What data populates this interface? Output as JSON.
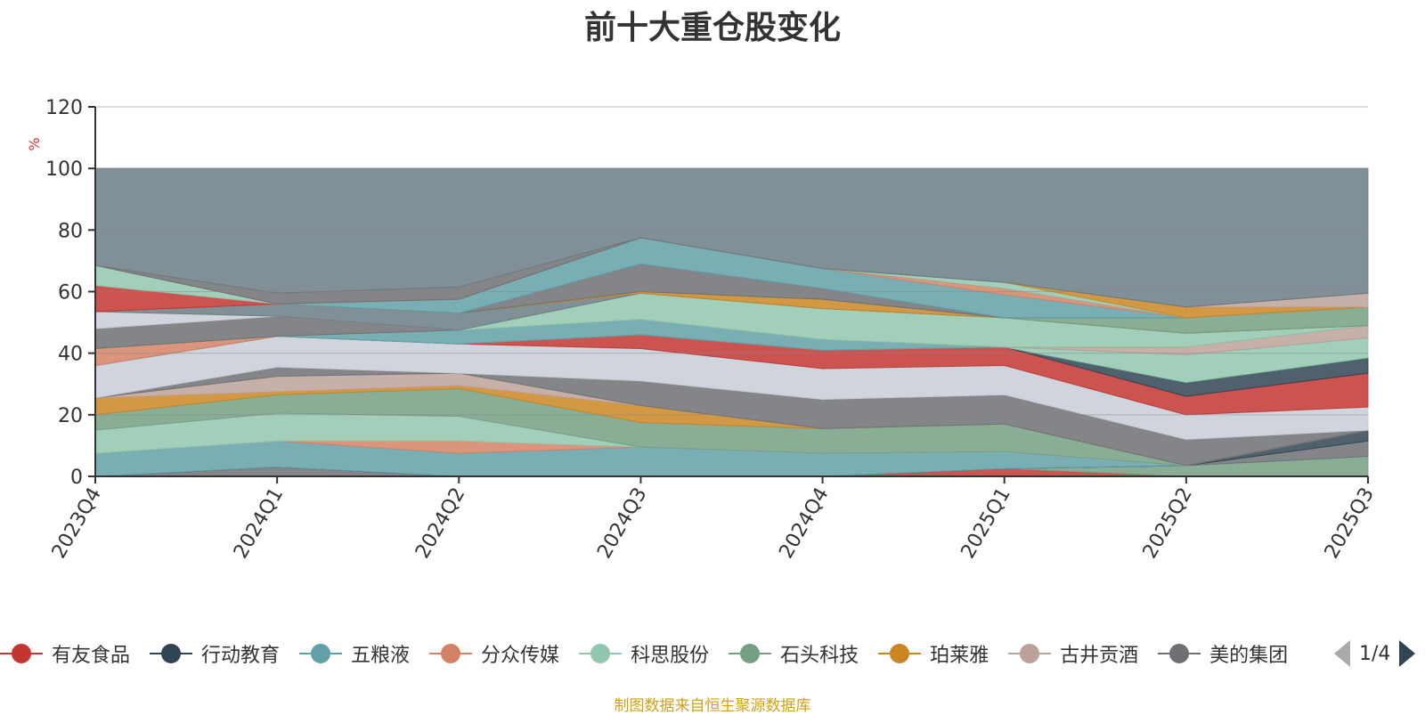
{
  "source_note": "制图数据来自恒生聚源数据库",
  "legend_pager": "1/4",
  "colors": {
    "有友食品": "#c23531",
    "行动教育": "#2f4554",
    "五粮液": "#61a0a8",
    "分众传媒": "#d48265",
    "科思股份": "#91c7ae",
    "石头科技": "#749f83",
    "珀莱雅": "#ca8622",
    "古井贡酒": "#bda29a",
    "美的集团": "#6e7074",
    "band_a": "#c8ccd6",
    "remainder": "#6b7b85"
  },
  "chart_data": {
    "type": "area",
    "title": "前十大重仓股变化",
    "ylabel": "%",
    "ylim": [
      0,
      120
    ],
    "y_ticks": [
      0,
      20,
      40,
      60,
      80,
      100,
      120
    ],
    "x": [
      "2023Q4",
      "2024Q1",
      "2024Q2",
      "2024Q3",
      "2024Q4",
      "2025Q1",
      "2025Q2",
      "2025Q3"
    ],
    "legend_visible": [
      "有友食品",
      "行动教育",
      "五粮液",
      "分众传媒",
      "科思股份",
      "石头科技",
      "珀莱雅",
      "古井贡酒",
      "美的集团"
    ],
    "stack_layers": [
      {
        "color": "#6e7074",
        "upper": [
          0,
          3,
          0,
          0,
          0,
          0,
          0,
          0
        ]
      },
      {
        "color": "#c23531",
        "upper": [
          0,
          3,
          0,
          0,
          0,
          2.5,
          0,
          0
        ]
      },
      {
        "color": "#749f83",
        "upper": [
          0,
          3,
          0,
          0,
          0,
          2.5,
          3.5,
          6.5
        ]
      },
      {
        "color": "#6e7074",
        "upper": [
          0,
          3,
          0,
          0,
          0,
          2.5,
          3.5,
          11.5
        ]
      },
      {
        "color": "#2f4554",
        "upper": [
          0,
          3,
          0,
          0,
          0,
          2.5,
          3.5,
          15
        ]
      },
      {
        "color": "#61a0a8",
        "upper": [
          7.5,
          11.5,
          7.5,
          9.5,
          7.5,
          8,
          3.5,
          15
        ]
      },
      {
        "color": "#d48265",
        "upper": [
          7.5,
          11.5,
          11.5,
          9.5,
          7.5,
          8,
          3.5,
          15
        ]
      },
      {
        "color": "#91c7ae",
        "upper": [
          15,
          20.5,
          19.5,
          9.5,
          7.5,
          8,
          3.5,
          15
        ]
      },
      {
        "color": "#749f83",
        "upper": [
          20,
          26.5,
          28.5,
          17.5,
          15.5,
          17,
          3.5,
          15
        ]
      },
      {
        "color": "#ca8622",
        "upper": [
          25.5,
          27.5,
          29.5,
          23,
          15.5,
          17,
          3.5,
          15
        ]
      },
      {
        "color": "#bda29a",
        "upper": [
          25.5,
          32.5,
          33.5,
          23,
          15.5,
          17,
          3.5,
          15
        ]
      },
      {
        "color": "#6e7074",
        "upper": [
          25.5,
          35.5,
          33.5,
          31,
          25,
          26.5,
          12,
          15
        ]
      },
      {
        "color": "#c8ccd6",
        "upper": [
          36,
          45.5,
          43,
          41.5,
          35,
          36,
          20,
          22.5
        ]
      },
      {
        "color": "#c23531",
        "upper": [
          36,
          45.5,
          43,
          46,
          41,
          42,
          26,
          33.5
        ]
      },
      {
        "color": "#2f4554",
        "upper": [
          36,
          45.5,
          43,
          46,
          41,
          42,
          30.5,
          38.5
        ]
      },
      {
        "color": "#91c7ae",
        "upper": [
          36,
          45.5,
          43,
          46,
          41,
          42,
          39.5,
          45
        ]
      },
      {
        "color": "#61a0a8",
        "upper": [
          36,
          45.5,
          47.5,
          51,
          44.5,
          42,
          39.5,
          45
        ]
      },
      {
        "color": "#bda29a",
        "upper": [
          36,
          45.5,
          47.5,
          51,
          44.5,
          42,
          42,
          49
        ]
      },
      {
        "color": "#d48265",
        "upper": [
          41.5,
          45.5,
          47.5,
          51,
          44.5,
          42,
          42,
          49
        ]
      },
      {
        "color": "#749f83",
        "upper": [
          41.5,
          45.5,
          47.5,
          51,
          44.5,
          42,
          42,
          49
        ]
      },
      {
        "color": "#91c7ae",
        "upper": [
          41.5,
          45.5,
          47.5,
          59.5,
          54.5,
          51.5,
          46.5,
          49
        ]
      },
      {
        "color": "#6e7074",
        "upper": [
          48,
          52,
          47.5,
          59.5,
          54.5,
          51.5,
          46.5,
          49
        ]
      },
      {
        "color": "#c8ccd6",
        "upper": [
          53.5,
          52,
          47.5,
          59.5,
          54.5,
          51.5,
          46.5,
          49
        ]
      },
      {
        "color": "#6b7b85",
        "upper": [
          53.5,
          56,
          53,
          59.5,
          54.5,
          51.5,
          46.5,
          49
        ]
      },
      {
        "color": "#ca8622",
        "upper": [
          53.5,
          56,
          53,
          60,
          57.5,
          51.5,
          46.5,
          49
        ]
      },
      {
        "color": "#749f83",
        "upper": [
          53.5,
          56,
          53,
          60,
          57.5,
          51.5,
          51.5,
          55
        ]
      },
      {
        "color": "#6e7074",
        "upper": [
          53.5,
          56,
          53,
          69,
          61,
          51.5,
          51.5,
          55
        ]
      },
      {
        "color": "#61a0a8",
        "upper": [
          53.5,
          56,
          57.5,
          77.5,
          67.5,
          59,
          51.5,
          55
        ]
      },
      {
        "color": "#d48265",
        "upper": [
          53.5,
          56,
          57.5,
          77.5,
          67.5,
          61,
          51.5,
          55
        ]
      },
      {
        "color": "#c23531",
        "upper": [
          62,
          56,
          57.5,
          77.5,
          67.5,
          61,
          51.5,
          55
        ]
      },
      {
        "color": "#91c7ae",
        "upper": [
          68.5,
          56,
          57.5,
          77.5,
          67.5,
          63,
          51.5,
          55
        ]
      },
      {
        "color": "#ca8622",
        "upper": [
          68.5,
          56,
          57.5,
          77.5,
          67.5,
          63,
          55,
          55
        ]
      },
      {
        "color": "#bda29a",
        "upper": [
          68.5,
          56,
          57.5,
          77.5,
          67.5,
          63,
          55,
          59.5
        ]
      },
      {
        "color": "#6e7074",
        "upper": [
          68.5,
          59.5,
          61.5,
          77.5,
          67.5,
          63,
          55,
          59.5
        ]
      },
      {
        "color": "#6b7b85",
        "upper": [
          100,
          100,
          100,
          100,
          100,
          100,
          100,
          100
        ]
      }
    ]
  }
}
